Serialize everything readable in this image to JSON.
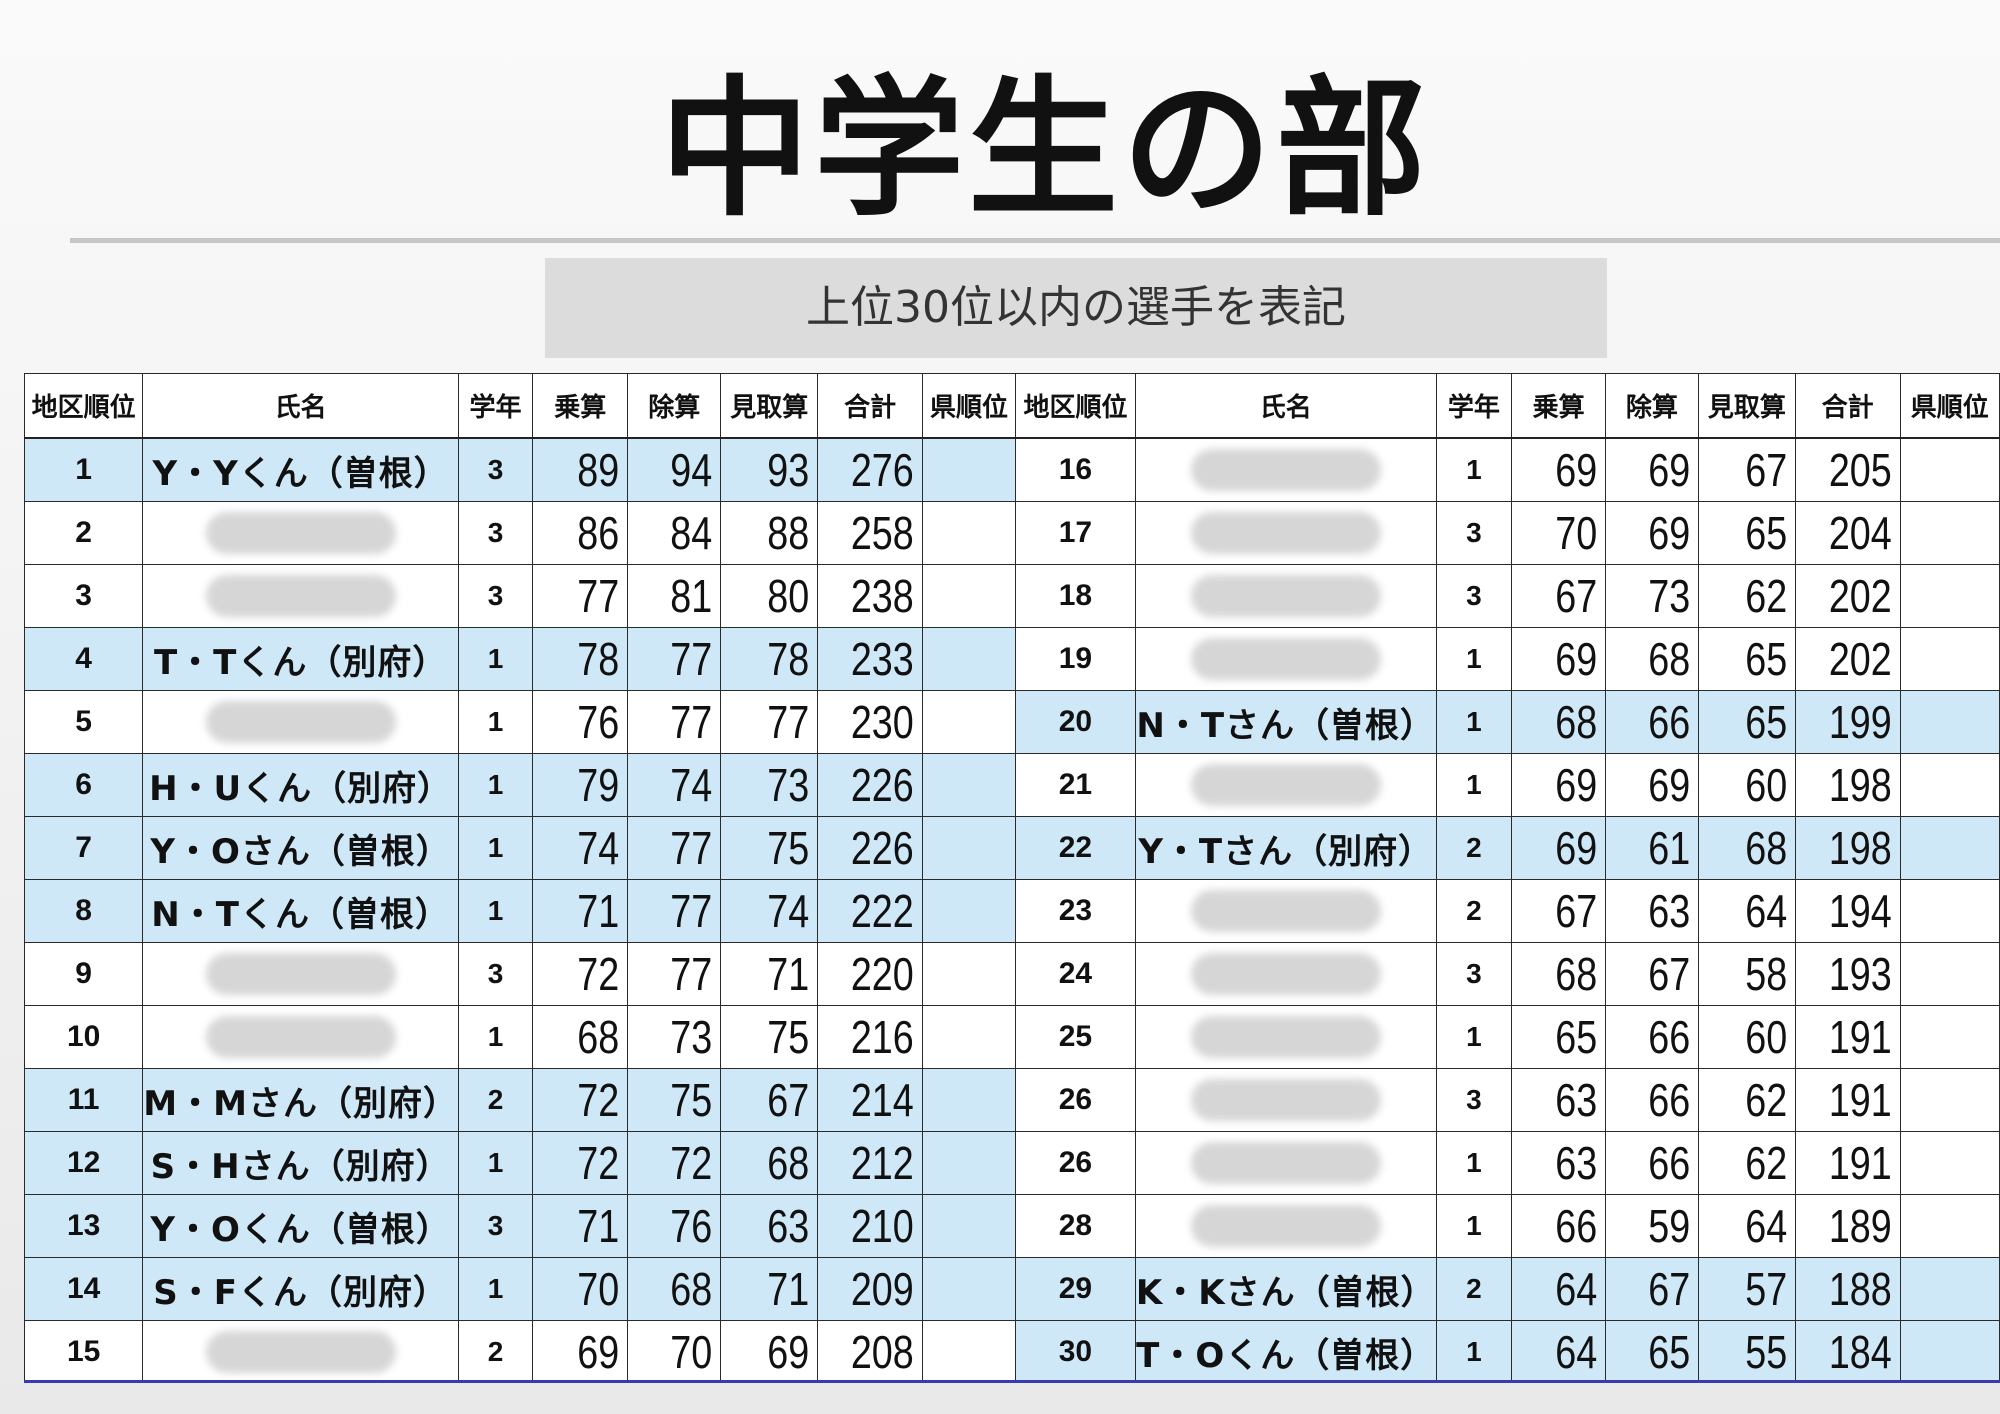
{
  "title": "中学生の部",
  "subtitle": "上位30位以内の選手を表記",
  "headers": [
    "地区順位",
    "氏名",
    "学年",
    "乗算",
    "除算",
    "見取算",
    "合計",
    "県順位"
  ],
  "left_rows": [
    {
      "rank": "1",
      "name": "Y・Yくん（曽根）",
      "grade": "3",
      "mul": "89",
      "div": "94",
      "mental": "93",
      "total": "276",
      "pref": "",
      "hl": true
    },
    {
      "rank": "2",
      "name": "",
      "grade": "3",
      "mul": "86",
      "div": "84",
      "mental": "88",
      "total": "258",
      "pref": "",
      "hl": false
    },
    {
      "rank": "3",
      "name": "",
      "grade": "3",
      "mul": "77",
      "div": "81",
      "mental": "80",
      "total": "238",
      "pref": "",
      "hl": false
    },
    {
      "rank": "4",
      "name": "T・Tくん（別府）",
      "grade": "1",
      "mul": "78",
      "div": "77",
      "mental": "78",
      "total": "233",
      "pref": "",
      "hl": true
    },
    {
      "rank": "5",
      "name": "",
      "grade": "1",
      "mul": "76",
      "div": "77",
      "mental": "77",
      "total": "230",
      "pref": "",
      "hl": false
    },
    {
      "rank": "6",
      "name": "H・Uくん（別府）",
      "grade": "1",
      "mul": "79",
      "div": "74",
      "mental": "73",
      "total": "226",
      "pref": "",
      "hl": true
    },
    {
      "rank": "7",
      "name": "Y・Oさん（曽根）",
      "grade": "1",
      "mul": "74",
      "div": "77",
      "mental": "75",
      "total": "226",
      "pref": "",
      "hl": true
    },
    {
      "rank": "8",
      "name": "N・Tくん（曽根）",
      "grade": "1",
      "mul": "71",
      "div": "77",
      "mental": "74",
      "total": "222",
      "pref": "",
      "hl": true
    },
    {
      "rank": "9",
      "name": "",
      "grade": "3",
      "mul": "72",
      "div": "77",
      "mental": "71",
      "total": "220",
      "pref": "",
      "hl": false
    },
    {
      "rank": "10",
      "name": "",
      "grade": "1",
      "mul": "68",
      "div": "73",
      "mental": "75",
      "total": "216",
      "pref": "",
      "hl": false
    },
    {
      "rank": "11",
      "name": "M・Mさん（別府）",
      "grade": "2",
      "mul": "72",
      "div": "75",
      "mental": "67",
      "total": "214",
      "pref": "",
      "hl": true
    },
    {
      "rank": "12",
      "name": "S・Hさん（別府）",
      "grade": "1",
      "mul": "72",
      "div": "72",
      "mental": "68",
      "total": "212",
      "pref": "",
      "hl": true
    },
    {
      "rank": "13",
      "name": "Y・Oくん（曽根）",
      "grade": "3",
      "mul": "71",
      "div": "76",
      "mental": "63",
      "total": "210",
      "pref": "",
      "hl": true
    },
    {
      "rank": "14",
      "name": "S・Fくん（別府）",
      "grade": "1",
      "mul": "70",
      "div": "68",
      "mental": "71",
      "total": "209",
      "pref": "",
      "hl": true
    },
    {
      "rank": "15",
      "name": "",
      "grade": "2",
      "mul": "69",
      "div": "70",
      "mental": "69",
      "total": "208",
      "pref": "",
      "hl": false
    }
  ],
  "right_rows": [
    {
      "rank": "16",
      "name": "",
      "grade": "1",
      "mul": "69",
      "div": "69",
      "mental": "67",
      "total": "205",
      "pref": "",
      "hl": false
    },
    {
      "rank": "17",
      "name": "",
      "grade": "3",
      "mul": "70",
      "div": "69",
      "mental": "65",
      "total": "204",
      "pref": "",
      "hl": false
    },
    {
      "rank": "18",
      "name": "",
      "grade": "3",
      "mul": "67",
      "div": "73",
      "mental": "62",
      "total": "202",
      "pref": "",
      "hl": false
    },
    {
      "rank": "19",
      "name": "",
      "grade": "1",
      "mul": "69",
      "div": "68",
      "mental": "65",
      "total": "202",
      "pref": "",
      "hl": false
    },
    {
      "rank": "20",
      "name": "N・Tさん（曽根）",
      "grade": "1",
      "mul": "68",
      "div": "66",
      "mental": "65",
      "total": "199",
      "pref": "",
      "hl": true
    },
    {
      "rank": "21",
      "name": "",
      "grade": "1",
      "mul": "69",
      "div": "69",
      "mental": "60",
      "total": "198",
      "pref": "",
      "hl": false
    },
    {
      "rank": "22",
      "name": "Y・Tさん（別府）",
      "grade": "2",
      "mul": "69",
      "div": "61",
      "mental": "68",
      "total": "198",
      "pref": "",
      "hl": true
    },
    {
      "rank": "23",
      "name": "",
      "grade": "2",
      "mul": "67",
      "div": "63",
      "mental": "64",
      "total": "194",
      "pref": "",
      "hl": false
    },
    {
      "rank": "24",
      "name": "",
      "grade": "3",
      "mul": "68",
      "div": "67",
      "mental": "58",
      "total": "193",
      "pref": "",
      "hl": false
    },
    {
      "rank": "25",
      "name": "",
      "grade": "1",
      "mul": "65",
      "div": "66",
      "mental": "60",
      "total": "191",
      "pref": "",
      "hl": false
    },
    {
      "rank": "26",
      "name": "",
      "grade": "3",
      "mul": "63",
      "div": "66",
      "mental": "62",
      "total": "191",
      "pref": "",
      "hl": false
    },
    {
      "rank": "26",
      "name": "",
      "grade": "1",
      "mul": "63",
      "div": "66",
      "mental": "62",
      "total": "191",
      "pref": "",
      "hl": false
    },
    {
      "rank": "28",
      "name": "",
      "grade": "1",
      "mul": "66",
      "div": "59",
      "mental": "64",
      "total": "189",
      "pref": "",
      "hl": false
    },
    {
      "rank": "29",
      "name": "K・Kさん（曽根）",
      "grade": "2",
      "mul": "64",
      "div": "67",
      "mental": "57",
      "total": "188",
      "pref": "",
      "hl": true
    },
    {
      "rank": "30",
      "name": "T・Oくん（曽根）",
      "grade": "1",
      "mul": "64",
      "div": "65",
      "mental": "55",
      "total": "184",
      "pref": "",
      "hl": true
    }
  ],
  "colors": {
    "highlight": "#cfe8f7",
    "subtitle_bg": "#dcdcdc",
    "rule": "#c6c6c6"
  }
}
